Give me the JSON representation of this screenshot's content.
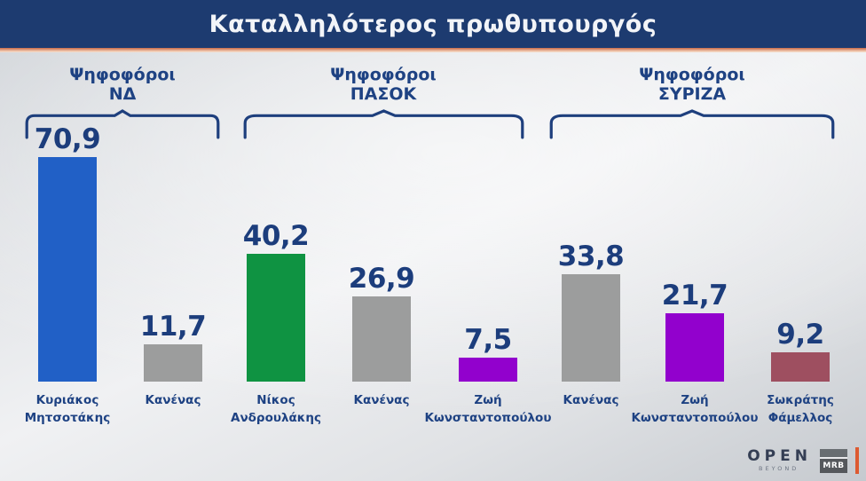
{
  "title": "Καταλληλότερος πρωθυπουργός",
  "branding": {
    "open_label": "OPEN",
    "open_sub": "BEYOND",
    "mrb_label": "MRB"
  },
  "colors": {
    "banner": "#1d3b70",
    "accent_underline": "#cf6f50",
    "value_text": "#1c3d7c",
    "label_text": "#1e4283",
    "bracket": "#1e3f7d",
    "bar_blue": "#2160c6",
    "bar_gray": "#9c9d9d",
    "bar_green": "#0f9342",
    "bar_purple": "#9201cd",
    "bar_maroon": "#9e4f60"
  },
  "chart_data": {
    "type": "bar",
    "title": "Καταλληλότερος πρωθυπουργός",
    "unit": "percent",
    "ylim": [
      0,
      80
    ],
    "grid": false,
    "value_decimal_separator": ",",
    "groups": [
      {
        "label": "Ψηφοφόροι ΝΔ",
        "label_lines": [
          "Ψηφοφόροι",
          "ΝΔ"
        ],
        "bars": [
          {
            "name": "Κυριάκος Μητσοτάκης",
            "name_lines": [
              "Κυριάκος",
              "Μητσοτάκης"
            ],
            "value": 70.9,
            "display": "70,9",
            "color": "#2160c6"
          },
          {
            "name": "Κανένας",
            "name_lines": [
              "Κανένας"
            ],
            "value": 11.7,
            "display": "11,7",
            "color": "#9c9d9d"
          }
        ]
      },
      {
        "label": "Ψηφοφόροι ΠΑΣΟΚ",
        "label_lines": [
          "Ψηφοφόροι",
          "ΠΑΣΟΚ"
        ],
        "bars": [
          {
            "name": "Νίκος Ανδρουλάκης",
            "name_lines": [
              "Νίκος",
              "Ανδρουλάκης"
            ],
            "value": 40.2,
            "display": "40,2",
            "color": "#0f9342"
          },
          {
            "name": "Κανένας",
            "name_lines": [
              "Κανένας"
            ],
            "value": 26.9,
            "display": "26,9",
            "color": "#9c9d9d"
          },
          {
            "name": "Ζωή Κωνσταντοπούλου",
            "name_lines": [
              "Ζωή",
              "Κωνσταντοπούλου"
            ],
            "value": 7.5,
            "display": "7,5",
            "color": "#9201cd"
          }
        ]
      },
      {
        "label": "Ψηφοφόροι ΣΥΡΙΖΑ",
        "label_lines": [
          "Ψηφοφόροι",
          "ΣΥΡΙΖΑ"
        ],
        "bars": [
          {
            "name": "Κανένας",
            "name_lines": [
              "Κανένας"
            ],
            "value": 33.8,
            "display": "33,8",
            "color": "#9c9d9d"
          },
          {
            "name": "Ζωή Κωνσταντοπούλου",
            "name_lines": [
              "Ζωή",
              "Κωνσταντοπούλου"
            ],
            "value": 21.7,
            "display": "21,7",
            "color": "#9201cd"
          },
          {
            "name": "Σωκράτης Φάμελλος",
            "name_lines": [
              "Σωκράτης",
              "Φάμελλος"
            ],
            "value": 9.2,
            "display": "9,2",
            "color": "#9e4f60"
          }
        ]
      }
    ]
  }
}
